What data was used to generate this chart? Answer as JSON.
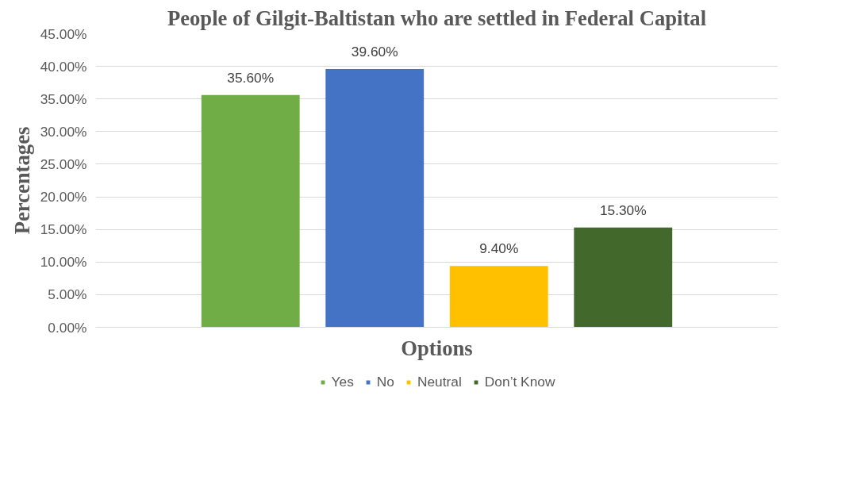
{
  "chart_data": {
    "type": "bar",
    "title": "People of Gilgit-Baltistan who are settled in Federal Capital",
    "xlabel": "Options",
    "ylabel": "Percentages",
    "categories": [
      null
    ],
    "series": [
      {
        "name": "Yes",
        "color": "#70ad47",
        "values": [
          35.6
        ],
        "value_labels": [
          "35.60%"
        ]
      },
      {
        "name": "No",
        "color": "#4472c4",
        "values": [
          39.6
        ],
        "value_labels": [
          "39.60%"
        ]
      },
      {
        "name": "Neutral",
        "color": "#ffc000",
        "values": [
          9.4
        ],
        "value_labels": [
          "9.40%"
        ]
      },
      {
        "name": "Don’t Know",
        "color": "#43682b",
        "values": [
          15.3
        ],
        "value_labels": [
          "15.30%"
        ]
      }
    ],
    "ylim": [
      0,
      45
    ],
    "yticks": [
      {
        "value": 0,
        "label": "0.00%"
      },
      {
        "value": 5,
        "label": "5.00%"
      },
      {
        "value": 10,
        "label": "10.00%"
      },
      {
        "value": 15,
        "label": "15.00%"
      },
      {
        "value": 20,
        "label": "20.00%"
      },
      {
        "value": 25,
        "label": "25.00%"
      },
      {
        "value": 30,
        "label": "30.00%"
      },
      {
        "value": 35,
        "label": "35.00%"
      },
      {
        "value": 40,
        "label": "40.00%"
      },
      {
        "value": 45,
        "label": "45.00%"
      }
    ],
    "grid": "y",
    "legend": "bottom"
  }
}
